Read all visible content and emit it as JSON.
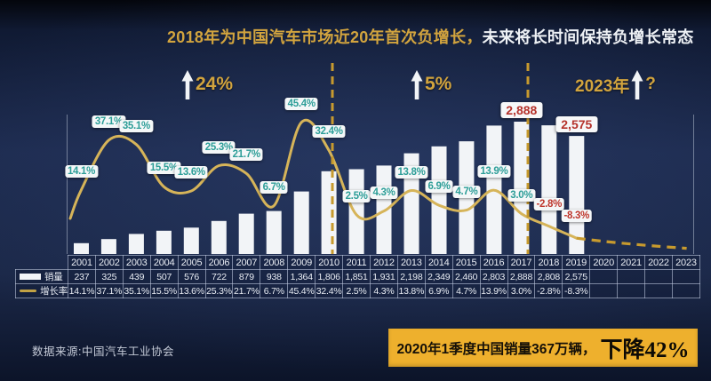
{
  "title": {
    "highlight": "2018年为中国汽车市场近20年首次负增长，",
    "rest": "未来将长时间保持负增长常态"
  },
  "annotations": {
    "period1": "24%",
    "period2": "5%",
    "period3_year": "2023年",
    "period3_mark": "?"
  },
  "legend": {
    "sales": "销量",
    "growth": "增长率"
  },
  "chart_data": {
    "type": "bar+line",
    "categories": [
      "2001",
      "2002",
      "2003",
      "2004",
      "2005",
      "2006",
      "2007",
      "2008",
      "2009",
      "2010",
      "2011",
      "2012",
      "2013",
      "2014",
      "2015",
      "2016",
      "2017",
      "2018",
      "2019",
      "2020",
      "2021",
      "2022",
      "2023"
    ],
    "series": [
      {
        "name": "销量",
        "type": "bar",
        "values": [
          237,
          325,
          439,
          507,
          576,
          722,
          879,
          938,
          1364,
          1806,
          1851,
          1931,
          2198,
          2349,
          2460,
          2803,
          2888,
          2808,
          2575,
          null,
          null,
          null,
          null
        ],
        "display": [
          "237",
          "325",
          "439",
          "507",
          "576",
          "722",
          "879",
          "938",
          "1,364",
          "1,806",
          "1,851",
          "1,931",
          "2,198",
          "2,349",
          "2,460",
          "2,803",
          "2,888",
          "2,808",
          "2,575",
          "",
          "",
          "",
          ""
        ]
      },
      {
        "name": "增长率",
        "type": "line",
        "unit": "%",
        "values": [
          14.1,
          37.1,
          35.1,
          15.5,
          13.6,
          25.3,
          21.7,
          6.7,
          45.4,
          32.4,
          2.5,
          4.3,
          13.8,
          6.9,
          4.7,
          13.9,
          3.0,
          -2.8,
          -8.3,
          null,
          null,
          null,
          null
        ],
        "display": [
          "14.1%",
          "37.1%",
          "35.1%",
          "15.5%",
          "13.6%",
          "25.3%",
          "21.7%",
          "6.7%",
          "45.4%",
          "32.4%",
          "2.5%",
          "4.3%",
          "13.8%",
          "6.9%",
          "4.7%",
          "13.9%",
          "3.0%",
          "-2.8%",
          "-8.3%",
          "",
          "",
          "",
          ""
        ]
      }
    ],
    "value_callouts": [
      {
        "category": "2017",
        "text": "2,888"
      },
      {
        "category": "2019",
        "text": "2,575"
      }
    ],
    "ylim_bar": [
      0,
      3000
    ],
    "ylim_line_pct": [
      -15,
      50
    ],
    "grid": false,
    "legend_position": "table-left"
  },
  "footer": {
    "source": "数据来源:中国汽车工业协会",
    "banner_text": "2020年1季度中国销量367万辆，",
    "banner_emphasis": "下降42%"
  },
  "colors": {
    "gold": "#d2a43e",
    "line_gold": "#d6b459",
    "dashed_gold": "#c79a2e",
    "bar_white": "#f2f4f7",
    "positive_label": "#2d9e98",
    "negative_label": "#bf372d",
    "callout_red": "#b5322b",
    "banner_bg": "#eeb02d",
    "background": "#1d2b4f"
  }
}
